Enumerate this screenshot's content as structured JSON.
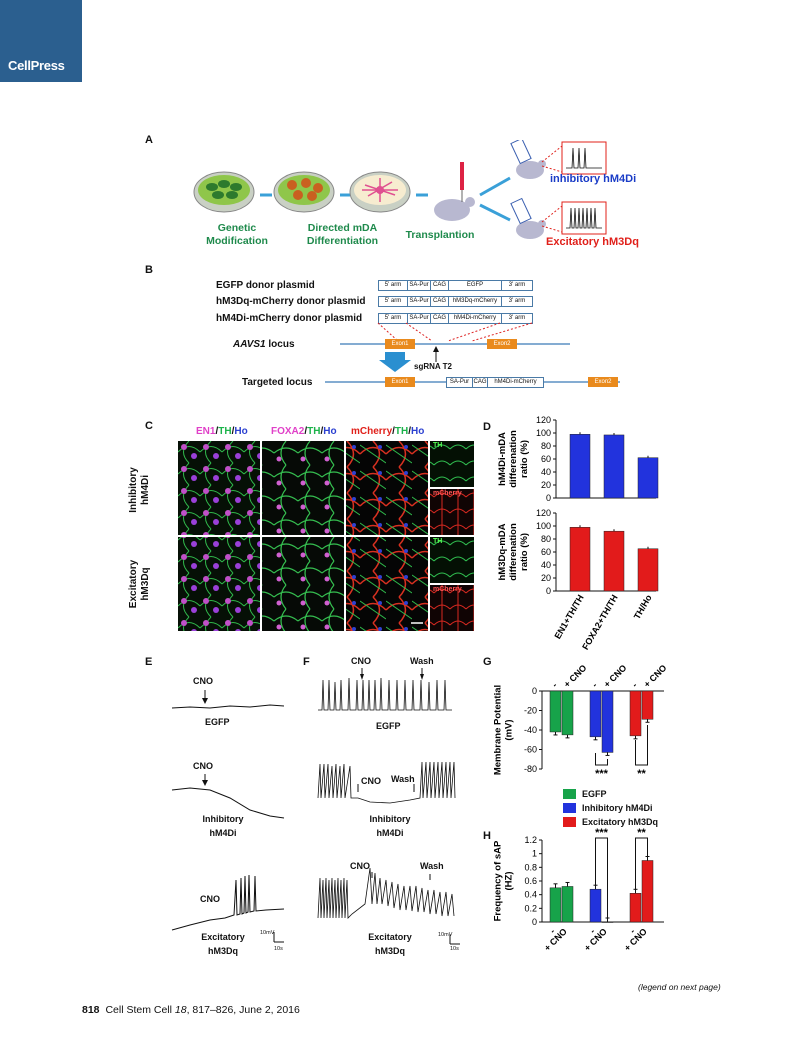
{
  "logo": {
    "text": "CellPress",
    "color": "#2b5f8f"
  },
  "panelA": {
    "label": "A",
    "steps": [
      "Genetic\nModification",
      "Directed mDA\nDifferentiation",
      "Transplantion"
    ],
    "cno": "CNO",
    "outcomes": [
      {
        "text": "inhibitory hM4Di",
        "color": "#1a3cc7"
      },
      {
        "text": "Excitatory hM3Dq",
        "color": "#e0201a"
      }
    ]
  },
  "panelB": {
    "label": "B",
    "plasmids": [
      "EGFP donor plasmid",
      "hM3Dq-mCherry donor plasmid",
      "hM4Di-mCherry donor plasmid"
    ],
    "parts": [
      "5' arm",
      "SA-Pur",
      "CAG",
      "EGFP",
      "hM3Dq-mCherry",
      "hM4Di-mCherry",
      "3' arm"
    ],
    "locus": "AAVS1 locus",
    "locus_italic": "AAVS1",
    "locus_suffix": "locus",
    "targeted": "Targeted locus",
    "exons": [
      "Exon1",
      "Exon2"
    ],
    "sgrna": "sgRNA T2"
  },
  "panelC": {
    "label": "C",
    "headers": [
      {
        "parts": [
          {
            "t": "EN1",
            "c": "#e040c8"
          },
          {
            "t": "/",
            "c": "#111"
          },
          {
            "t": "TH",
            "c": "#1bb34a"
          },
          {
            "t": "/",
            "c": "#111"
          },
          {
            "t": "Ho",
            "c": "#2a3fd0"
          }
        ]
      },
      {
        "parts": [
          {
            "t": "FOXA2",
            "c": "#e040c8"
          },
          {
            "t": "/",
            "c": "#111"
          },
          {
            "t": "TH",
            "c": "#1bb34a"
          },
          {
            "t": "/",
            "c": "#111"
          },
          {
            "t": "Ho",
            "c": "#2a3fd0"
          }
        ]
      },
      {
        "parts": [
          {
            "t": "mCherry",
            "c": "#e0201a"
          },
          {
            "t": "/",
            "c": "#111"
          },
          {
            "t": "TH",
            "c": "#1bb34a"
          },
          {
            "t": "/",
            "c": "#111"
          },
          {
            "t": "Ho",
            "c": "#2a3fd0"
          }
        ]
      }
    ],
    "rows": [
      "Inhibitory\nhM4Di",
      "Excitatory\nhM3Dq"
    ],
    "insets": [
      "TH",
      "mCherry"
    ]
  },
  "panelE": {
    "label": "E",
    "traces": [
      {
        "cno": "CNO",
        "name": "EGFP"
      },
      {
        "cno": "CNO",
        "name": "Inhibitory\nhM4Di"
      },
      {
        "cno": "CNO",
        "name": "Excitatory\nhM3Dq"
      }
    ],
    "scale": {
      "v": "10mV",
      "t": "10s"
    }
  },
  "panelF": {
    "label": "F",
    "traces": [
      {
        "cno": "CNO",
        "wash": "Wash",
        "name": "EGFP"
      },
      {
        "cno": "CNO",
        "wash": "Wash",
        "name": "Inhibitory\nhM4Di"
      },
      {
        "cno": "CNO",
        "wash": "Wash",
        "name": "Excitatory\nhM3Dq"
      }
    ],
    "scale": {
      "v": "10mV",
      "t": "10s"
    }
  },
  "legend": [
    {
      "name": "EGFP",
      "color": "#17a34a"
    },
    {
      "name": "Inhibitory hM4Di",
      "color": "#2233dd"
    },
    {
      "name": "Excitatory hM3Dq",
      "color": "#e21b1b"
    }
  ],
  "footer": {
    "page": "818",
    "journal": "Cell Stem Cell",
    "volume": "18",
    "rest": ", 817–826, June 2, 2016",
    "note": "(legend on next page)"
  },
  "chart_data": [
    {
      "type": "bar",
      "panel": "D",
      "ylabel": "hM4Di-mDA\ndifferenation\nratio (%)",
      "categories": [
        "EN1+TH/TH",
        "FOXA2+TH/TH",
        "TH/Ho"
      ],
      "values": [
        98,
        97,
        62
      ],
      "color": "#2233dd",
      "ylim": [
        0,
        120
      ],
      "yticks": [
        0,
        20,
        40,
        60,
        80,
        100,
        120
      ]
    },
    {
      "type": "bar",
      "panel": "D",
      "ylabel": "hM3Dq-mDA\ndifferenation\nratio (%)",
      "categories": [
        "EN1+TH/TH",
        "FOXA2+TH/TH",
        "TH/Ho"
      ],
      "values": [
        98,
        92,
        65
      ],
      "color": "#e21b1b",
      "ylim": [
        0,
        120
      ],
      "yticks": [
        0,
        20,
        40,
        60,
        80,
        100,
        120
      ]
    },
    {
      "type": "bar",
      "panel": "G",
      "ylabel": "Membrane Potential\n(mV)",
      "groups": [
        "EGFP",
        "Inhibitory hM4Di",
        "Excitatory hM3Dq"
      ],
      "conditions": [
        "-",
        "+ CNO"
      ],
      "values": [
        [
          -42,
          -45
        ],
        [
          -47,
          -63
        ],
        [
          -46,
          -29
        ]
      ],
      "ylim": [
        -80,
        0
      ],
      "yticks": [
        0,
        -20,
        -40,
        -60,
        -80
      ],
      "significance": [
        "***",
        "**"
      ]
    },
    {
      "type": "bar",
      "panel": "H",
      "ylabel": "Frequency of sAP\n(HZ)",
      "groups": [
        "EGFP",
        "Inhibitory hM4Di",
        "Excitatory hM3Dq"
      ],
      "conditions": [
        "-",
        "+ CNO"
      ],
      "values": [
        [
          0.5,
          0.52
        ],
        [
          0.48,
          0.0
        ],
        [
          0.42,
          0.9
        ]
      ],
      "ylim": [
        0,
        1.2
      ],
      "yticks": [
        0,
        0.2,
        0.4,
        0.6,
        0.8,
        1.0,
        1.2
      ],
      "significance": [
        "***",
        "**"
      ]
    }
  ]
}
